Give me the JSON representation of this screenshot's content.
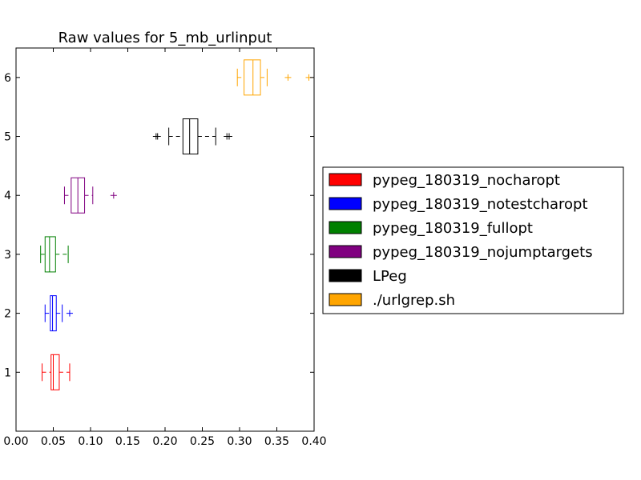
{
  "chart_data": {
    "type": "boxplot",
    "orientation": "horizontal",
    "title": "Raw values for 5_mb_urlinput",
    "xlabel": "",
    "ylabel": "",
    "xlim": [
      0.0,
      0.4
    ],
    "ylim": [
      0,
      6.5
    ],
    "x_ticks": [
      "0.00",
      "0.05",
      "0.10",
      "0.15",
      "0.20",
      "0.25",
      "0.30",
      "0.35",
      "0.40"
    ],
    "y_ticks": [
      "1",
      "2",
      "3",
      "4",
      "5",
      "6"
    ],
    "grid": false,
    "legend_position": "right",
    "series": [
      {
        "name": "pypeg_180319_nocharopt",
        "color": "#ff0000",
        "position": 1,
        "whisker_low": 0.035,
        "q1": 0.047,
        "median": 0.05,
        "q3": 0.058,
        "whisker_high": 0.072,
        "outliers": []
      },
      {
        "name": "pypeg_180319_notestcharopt",
        "color": "#0000ff",
        "position": 2,
        "whisker_low": 0.039,
        "q1": 0.046,
        "median": 0.049,
        "q3": 0.054,
        "whisker_high": 0.062,
        "outliers": [
          0.072
        ]
      },
      {
        "name": "pypeg_180319_fullopt",
        "color": "#008000",
        "position": 3,
        "whisker_low": 0.033,
        "q1": 0.039,
        "median": 0.045,
        "q3": 0.053,
        "whisker_high": 0.07,
        "outliers": []
      },
      {
        "name": "pypeg_180319_nojumptargets",
        "color": "#800080",
        "position": 4,
        "whisker_low": 0.065,
        "q1": 0.074,
        "median": 0.083,
        "q3": 0.092,
        "whisker_high": 0.103,
        "outliers": [
          0.131
        ]
      },
      {
        "name": "LPeg",
        "color": "#000000",
        "position": 5,
        "whisker_low": 0.205,
        "q1": 0.224,
        "median": 0.233,
        "q3": 0.244,
        "whisker_high": 0.268,
        "outliers": [
          0.188,
          0.19,
          0.283,
          0.286
        ]
      },
      {
        "name": "./urlgrep.sh",
        "color": "#ffa500",
        "position": 6,
        "whisker_low": 0.297,
        "q1": 0.306,
        "median": 0.318,
        "q3": 0.328,
        "whisker_high": 0.337,
        "outliers": [
          0.365,
          0.393
        ]
      }
    ]
  }
}
